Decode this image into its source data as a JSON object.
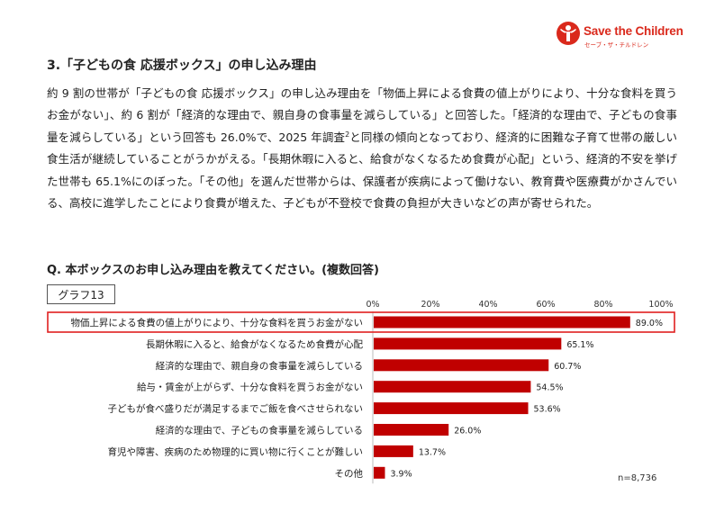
{
  "logo": {
    "name": "Save the Children",
    "sub": "セーブ・ザ・チルドレン"
  },
  "section_title": "3.「子どもの食 応援ボックス」の申し込み理由",
  "body": {
    "part1": "約 9 割の世帯が「子どもの食 応援ボックス」の申し込み理由を「物価上昇による食費の値上がりにより、十分な食料を買うお金がない」、約 6 割が「経済的な理由で、親自身の食事量を減らしている」と回答した。「経済的な理由で、子どもの食事量を減らしている」という回答も 26.0%で、2025 年調査",
    "sup": "2",
    "part2": "と同様の傾向となっており、経済的に困難な子育て世帯の厳しい食生活が継続していることがうかがえる。「長期休暇に入ると、給食がなくなるため食費が心配」という、経済的不安を挙げた世帯も 65.1%にのぼった。「その他」を選んだ世帯からは、保護者が疾病によって働けない、教育費や医療費がかさんでいる、高校に進学したことにより食費が増えた、子どもが不登校で食費の負担が大きいなどの声が寄せられた。"
  },
  "question": "Q. 本ボックスのお申し込み理由を教えてください。(複数回答)",
  "graph_label": "グラフ13",
  "note": "n=8,736",
  "colors": {
    "bar": "#c00000",
    "highlight_border": "#e02020",
    "brand": "#da291c"
  },
  "chart_data": {
    "type": "bar",
    "orientation": "horizontal",
    "categories": [
      "物価上昇による食費の値上がりにより、十分な食料を買うお金がない",
      "長期休暇に入ると、給食がなくなるため食費が心配",
      "経済的な理由で、親自身の食事量を減らしている",
      "給与・賃金が上がらず、十分な食料を買うお金がない",
      "子どもが食べ盛りだが満足するまでご飯を食べさせられない",
      "経済的な理由で、子どもの食事量を減らしている",
      "育児や障害、疾病のため物理的に買い物に行くことが難しい",
      "その他"
    ],
    "values": [
      89.0,
      65.1,
      60.7,
      54.5,
      53.6,
      26.0,
      13.7,
      3.9
    ],
    "value_labels": [
      "89.0%",
      "65.1%",
      "60.7%",
      "54.5%",
      "53.6%",
      "26.0%",
      "13.7%",
      "3.9%"
    ],
    "xlim": [
      0,
      100
    ],
    "xticks": [
      0,
      20,
      40,
      60,
      80,
      100
    ],
    "xtick_labels": [
      "0%",
      "20%",
      "40%",
      "60%",
      "80%",
      "100%"
    ],
    "axis_position": "top",
    "highlighted_category_index": 0
  }
}
